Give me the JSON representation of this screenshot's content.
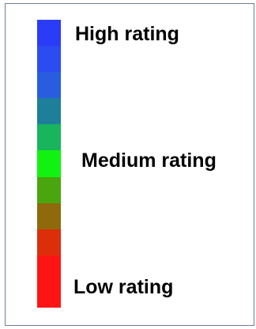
{
  "legend": {
    "labels": {
      "high": "High rating",
      "medium": "Medium rating",
      "low": "Low rating"
    },
    "swatches": [
      {
        "color": "#2a3cf7"
      },
      {
        "color": "#2a4cf0"
      },
      {
        "color": "#285de0"
      },
      {
        "color": "#1e7f9a"
      },
      {
        "color": "#18b55c"
      },
      {
        "color": "#11f211"
      },
      {
        "color": "#4aa60e"
      },
      {
        "color": "#8e6a0c"
      },
      {
        "color": "#dc2e0a"
      },
      {
        "color": "#ff1414"
      },
      {
        "color": "#ff1414"
      }
    ]
  }
}
